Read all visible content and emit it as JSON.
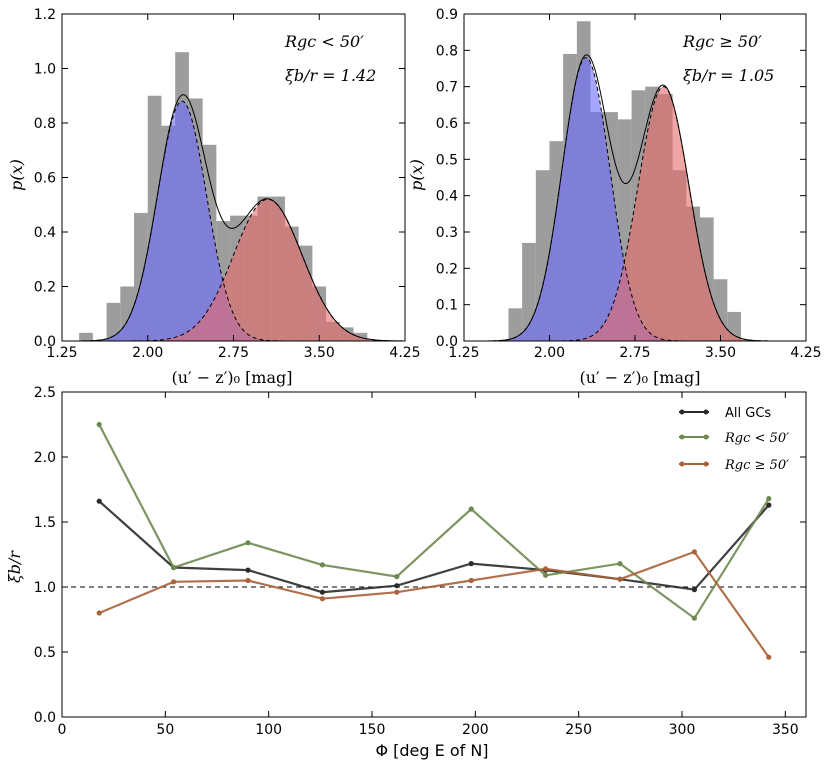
{
  "chart_data": [
    {
      "type": "histogram",
      "panel": "top-left",
      "xlabel": "(u′ − z′)₀ [mag]",
      "ylabel": "p(x)",
      "xlim": [
        1.25,
        4.25
      ],
      "ylim": [
        0.0,
        1.2
      ],
      "xticks": [
        "1.25",
        "2.00",
        "2.75",
        "3.50",
        "4.25"
      ],
      "yticks": [
        "0.0",
        "0.2",
        "0.4",
        "0.6",
        "0.8",
        "1.0",
        "1.2"
      ],
      "annotation_region": "Rgc < 50′",
      "annotation_ratio": "ξb/r = 1.42",
      "hist_edges": [
        1.4,
        1.52,
        1.64,
        1.76,
        1.88,
        2.0,
        2.12,
        2.24,
        2.36,
        2.48,
        2.6,
        2.72,
        2.84,
        2.96,
        3.08,
        3.2,
        3.32,
        3.44,
        3.56,
        3.68,
        3.8,
        3.92,
        4.04
      ],
      "hist_values": [
        0.03,
        0.0,
        0.14,
        0.2,
        0.47,
        0.9,
        0.79,
        1.06,
        0.89,
        0.72,
        0.44,
        0.46,
        0.46,
        0.53,
        0.53,
        0.42,
        0.35,
        0.2,
        0.07,
        0.05,
        0.03,
        0.0
      ],
      "blue_component": {
        "mu": 2.3,
        "sigma": 0.215,
        "amp": 0.88,
        "color": "#6b6bff"
      },
      "red_component": {
        "mu": 3.05,
        "sigma": 0.3,
        "amp": 0.52,
        "color": "#e86a6a"
      }
    },
    {
      "type": "histogram",
      "panel": "top-right",
      "xlabel": "(u′ − z′)₀ [mag]",
      "ylabel": "p(x)",
      "xlim": [
        1.25,
        4.25
      ],
      "ylim": [
        0.0,
        0.9
      ],
      "xticks": [
        "1.25",
        "2.00",
        "2.75",
        "3.50",
        "4.25"
      ],
      "yticks": [
        "0.0",
        "0.1",
        "0.2",
        "0.3",
        "0.4",
        "0.5",
        "0.6",
        "0.7",
        "0.8",
        "0.9"
      ],
      "annotation_region": "Rgc ≥ 50′",
      "annotation_ratio": "ξb/r = 1.05",
      "hist_edges": [
        1.64,
        1.76,
        1.88,
        2.0,
        2.12,
        2.24,
        2.36,
        2.48,
        2.6,
        2.72,
        2.84,
        2.96,
        3.08,
        3.2,
        3.32,
        3.44,
        3.56,
        3.68
      ],
      "hist_values": [
        0.09,
        0.27,
        0.47,
        0.55,
        0.79,
        0.88,
        0.63,
        0.63,
        0.61,
        0.69,
        0.7,
        0.68,
        0.47,
        0.37,
        0.34,
        0.17,
        0.08
      ],
      "blue_component": {
        "mu": 2.32,
        "sigma": 0.21,
        "amp": 0.78,
        "color": "#6b6bff"
      },
      "red_component": {
        "mu": 3.0,
        "sigma": 0.225,
        "amp": 0.7,
        "color": "#e86a6a"
      }
    },
    {
      "type": "line",
      "panel": "bottom",
      "xlabel": "Φ [deg E of N]",
      "ylabel": "ξb/r",
      "xlim": [
        0,
        360
      ],
      "ylim": [
        0.0,
        2.5
      ],
      "xticks": [
        "0",
        "50",
        "100",
        "150",
        "200",
        "250",
        "300",
        "350"
      ],
      "yticks": [
        "0.0",
        "0.5",
        "1.0",
        "1.5",
        "2.0",
        "2.5"
      ],
      "reference_line": 1.0,
      "legend_position": "top-right",
      "x": [
        18,
        54,
        90,
        126,
        162,
        198,
        234,
        270,
        306,
        342
      ],
      "series": [
        {
          "name": "All GCs",
          "color": "#2b2b2b",
          "values": [
            1.66,
            1.15,
            1.13,
            0.96,
            1.01,
            1.18,
            1.13,
            1.06,
            0.98,
            1.63
          ]
        },
        {
          "name": "Rgc < 50′",
          "color": "#6e8a50",
          "values": [
            2.25,
            1.15,
            1.34,
            1.17,
            1.08,
            1.6,
            1.09,
            1.18,
            0.76,
            1.68
          ]
        },
        {
          "name": "Rgc ≥ 50′",
          "color": "#a9623a",
          "values": [
            0.8,
            1.04,
            1.05,
            0.91,
            0.96,
            1.05,
            1.14,
            1.06,
            1.27,
            0.46
          ]
        }
      ]
    }
  ],
  "labels": {
    "p1_ylabel": "p(x)",
    "p2_ylabel": "p(x)",
    "p1_xlabel": "(u′ − z′)₀ [mag]",
    "p2_xlabel": "(u′ − z′)₀ [mag]",
    "p3_ylabel": "ξb/r",
    "p3_xlabel": "Φ [deg E of N]",
    "p1_ann_region": "Rgc < 50′",
    "p1_ann_ratio": "ξb/r = 1.42",
    "p2_ann_region": "Rgc ≥ 50′",
    "p2_ann_ratio": "ξb/r = 1.05",
    "legend_all": "All GCs",
    "legend_inner": "Rgc < 50′",
    "legend_outer": "Rgc ≥ 50′"
  }
}
